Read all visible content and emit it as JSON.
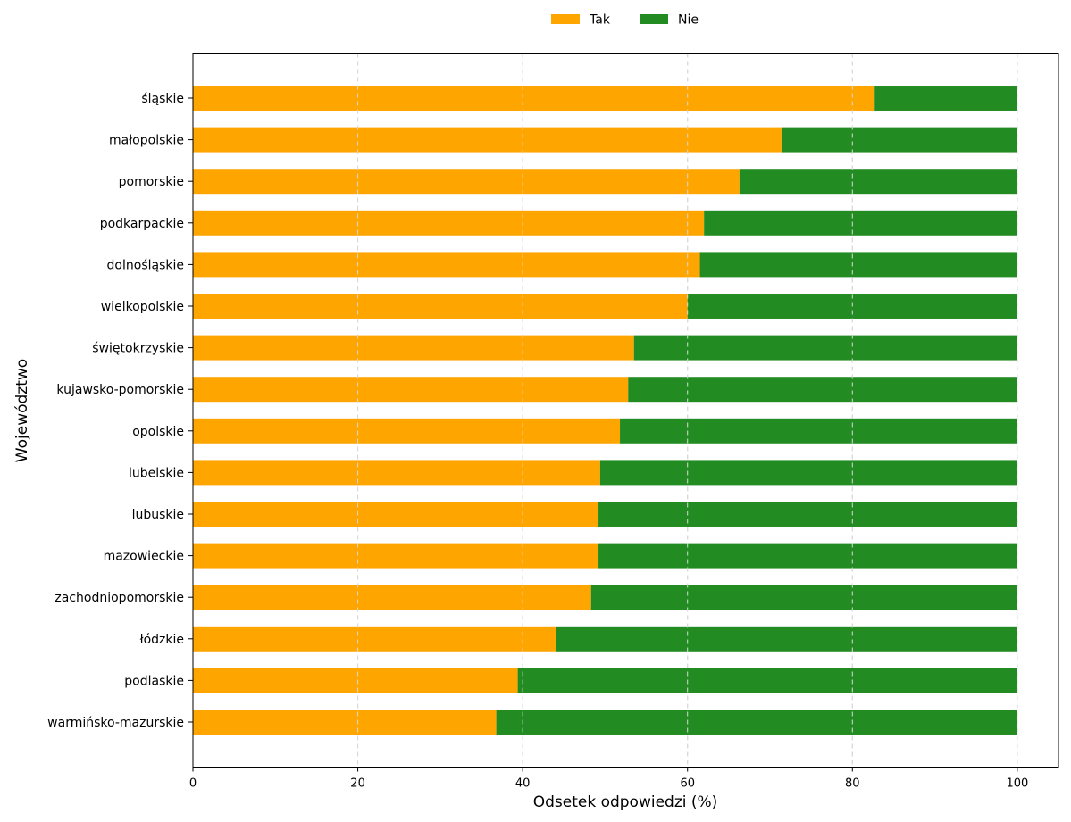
{
  "chart_data": {
    "type": "bar",
    "orientation": "horizontal",
    "stacked": true,
    "title": "",
    "xlabel": "Odsetek odpowiedzi (%)",
    "ylabel": "Województwo",
    "xlim": [
      0,
      105
    ],
    "xticks": [
      0,
      20,
      40,
      60,
      80,
      100
    ],
    "xtick_labels": [
      "0",
      "20",
      "40",
      "60",
      "80",
      "100"
    ],
    "grid": "vertical dashed",
    "legend_position": "top-center",
    "categories": [
      "śląskie",
      "małopolskie",
      "pomorskie",
      "podkarpackie",
      "dolnośląskie",
      "wielkopolskie",
      "świętokrzyskie",
      "kujawsko-pomorskie",
      "opolskie",
      "lubelskie",
      "lubuskie",
      "mazowieckie",
      "zachodniopomorskie",
      "łódzkie",
      "podlaskie",
      "warmińsko-mazurskie"
    ],
    "series": [
      {
        "name": "Tak",
        "color": "#FFA500",
        "values": [
          82.7,
          71.4,
          66.3,
          62.0,
          61.5,
          60.0,
          53.5,
          52.8,
          51.8,
          49.4,
          49.2,
          49.2,
          48.3,
          44.1,
          39.4,
          36.8
        ]
      },
      {
        "name": "Nie",
        "color": "#228B22",
        "values": [
          17.3,
          28.6,
          33.7,
          38.0,
          38.5,
          40.0,
          46.5,
          47.2,
          48.2,
          50.6,
          50.8,
          50.8,
          51.7,
          55.9,
          60.6,
          63.2
        ]
      }
    ]
  }
}
